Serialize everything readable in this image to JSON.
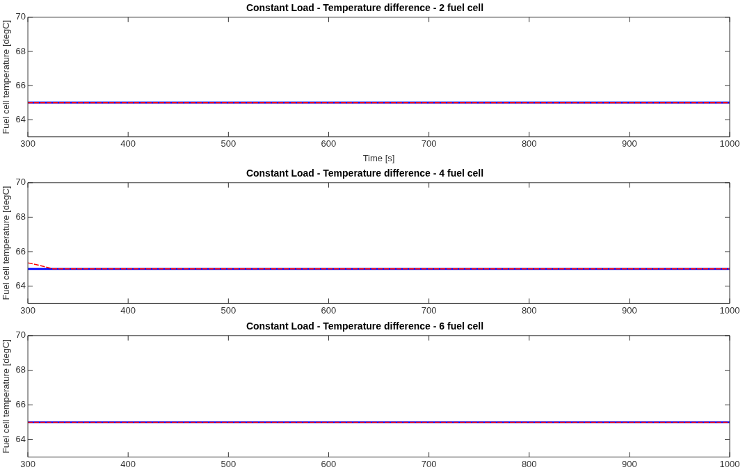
{
  "chart_data": [
    {
      "type": "line",
      "title": "Constant Load - Temperature difference - 2 fuel cell",
      "xlabel": "Time [s]",
      "ylabel": "Fuel cell temperature [degC]",
      "xlim": [
        300,
        1000
      ],
      "xticks": [
        300,
        400,
        500,
        600,
        700,
        800,
        900,
        1000
      ],
      "ylim": [
        63,
        70
      ],
      "yticks": [
        64,
        66,
        68,
        70
      ],
      "grid": false,
      "legend": false,
      "marker": "none",
      "series": [
        {
          "color": "#0000ff",
          "line_style": "solid",
          "x": [
            300,
            1000
          ],
          "values": [
            65,
            65
          ]
        },
        {
          "color": "#ff0000",
          "line_style": "dashed",
          "x": [
            300,
            1000
          ],
          "values": [
            65,
            65
          ]
        }
      ]
    },
    {
      "type": "line",
      "title": "Constant Load - Temperature difference - 4 fuel cell",
      "ylabel": "Fuel cell temperature [degC]",
      "xlim": [
        300,
        1000
      ],
      "xticks": [
        300,
        400,
        500,
        600,
        700,
        800,
        900,
        1000
      ],
      "ylim": [
        63,
        70
      ],
      "yticks": [
        64,
        66,
        68,
        70
      ],
      "grid": false,
      "legend": false,
      "marker": "none",
      "series": [
        {
          "color": "#0000ff",
          "line_style": "solid",
          "x": [
            300,
            1000
          ],
          "values": [
            65,
            65
          ]
        },
        {
          "color": "#ff0000",
          "line_style": "dashed",
          "x": [
            300,
            312,
            325,
            1000
          ],
          "values": [
            65.35,
            65.2,
            65,
            65
          ]
        }
      ]
    },
    {
      "type": "line",
      "title": "Constant Load - Temperature difference - 6 fuel cell",
      "ylabel": "Fuel cell temperature [degC]",
      "xlim": [
        300,
        1000
      ],
      "xticks": [
        300,
        400,
        500,
        600,
        700,
        800,
        900,
        1000
      ],
      "ylim": [
        63,
        70
      ],
      "yticks": [
        64,
        66,
        68,
        70
      ],
      "grid": false,
      "legend": false,
      "marker": "none",
      "series": [
        {
          "color": "#0000ff",
          "line_style": "solid",
          "x": [
            300,
            1000
          ],
          "values": [
            65,
            65
          ]
        },
        {
          "color": "#ff0000",
          "line_style": "dashed",
          "x": [
            300,
            1000
          ],
          "values": [
            65,
            65
          ]
        }
      ]
    }
  ]
}
